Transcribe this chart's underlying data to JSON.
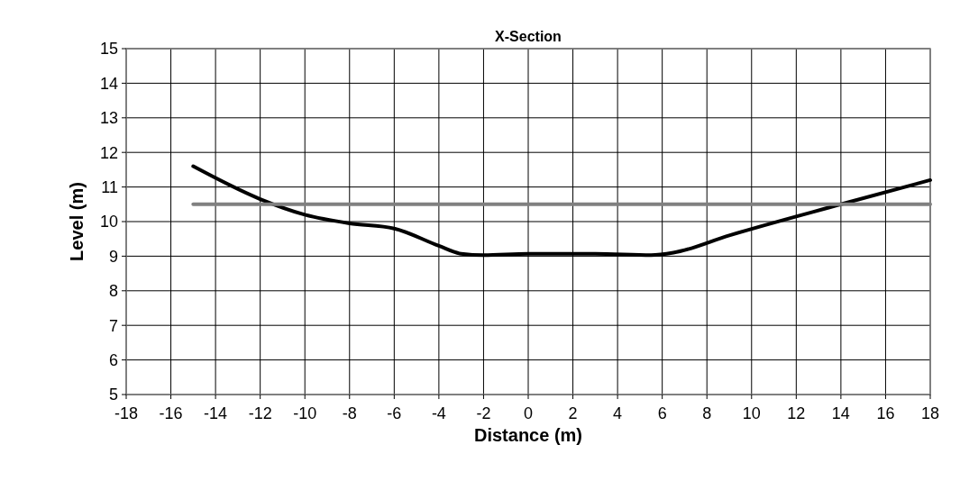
{
  "chart_data": {
    "type": "line",
    "title": "X-Section",
    "xlabel": "Distance (m)",
    "ylabel": "Level (m)",
    "series": [
      {
        "color": "#000000",
        "x": [
          -15,
          -12,
          -10,
          -8,
          -6,
          -4,
          -3,
          -2,
          0,
          3,
          5.5,
          6.5,
          9,
          14,
          18
        ],
        "values": [
          11.6,
          10.65,
          10.2,
          9.95,
          9.8,
          9.3,
          9.07,
          9.03,
          9.07,
          9.07,
          9.03,
          9.1,
          9.6,
          10.5,
          11.2
        ]
      },
      {
        "color": "#808080",
        "x": [
          -15,
          18
        ],
        "values": [
          10.5,
          10.5
        ]
      }
    ],
    "xlim": [
      -18,
      18
    ],
    "xticks": [
      -18,
      -16,
      -14,
      -12,
      -10,
      -8,
      -6,
      -4,
      -2,
      0,
      2,
      4,
      6,
      8,
      10,
      12,
      14,
      16,
      18
    ],
    "ylim": [
      5,
      15
    ],
    "yticks": [
      5,
      6,
      7,
      8,
      9,
      10,
      11,
      12,
      13,
      14,
      15
    ],
    "grid": true,
    "marker": "none",
    "line_style": "solid"
  }
}
